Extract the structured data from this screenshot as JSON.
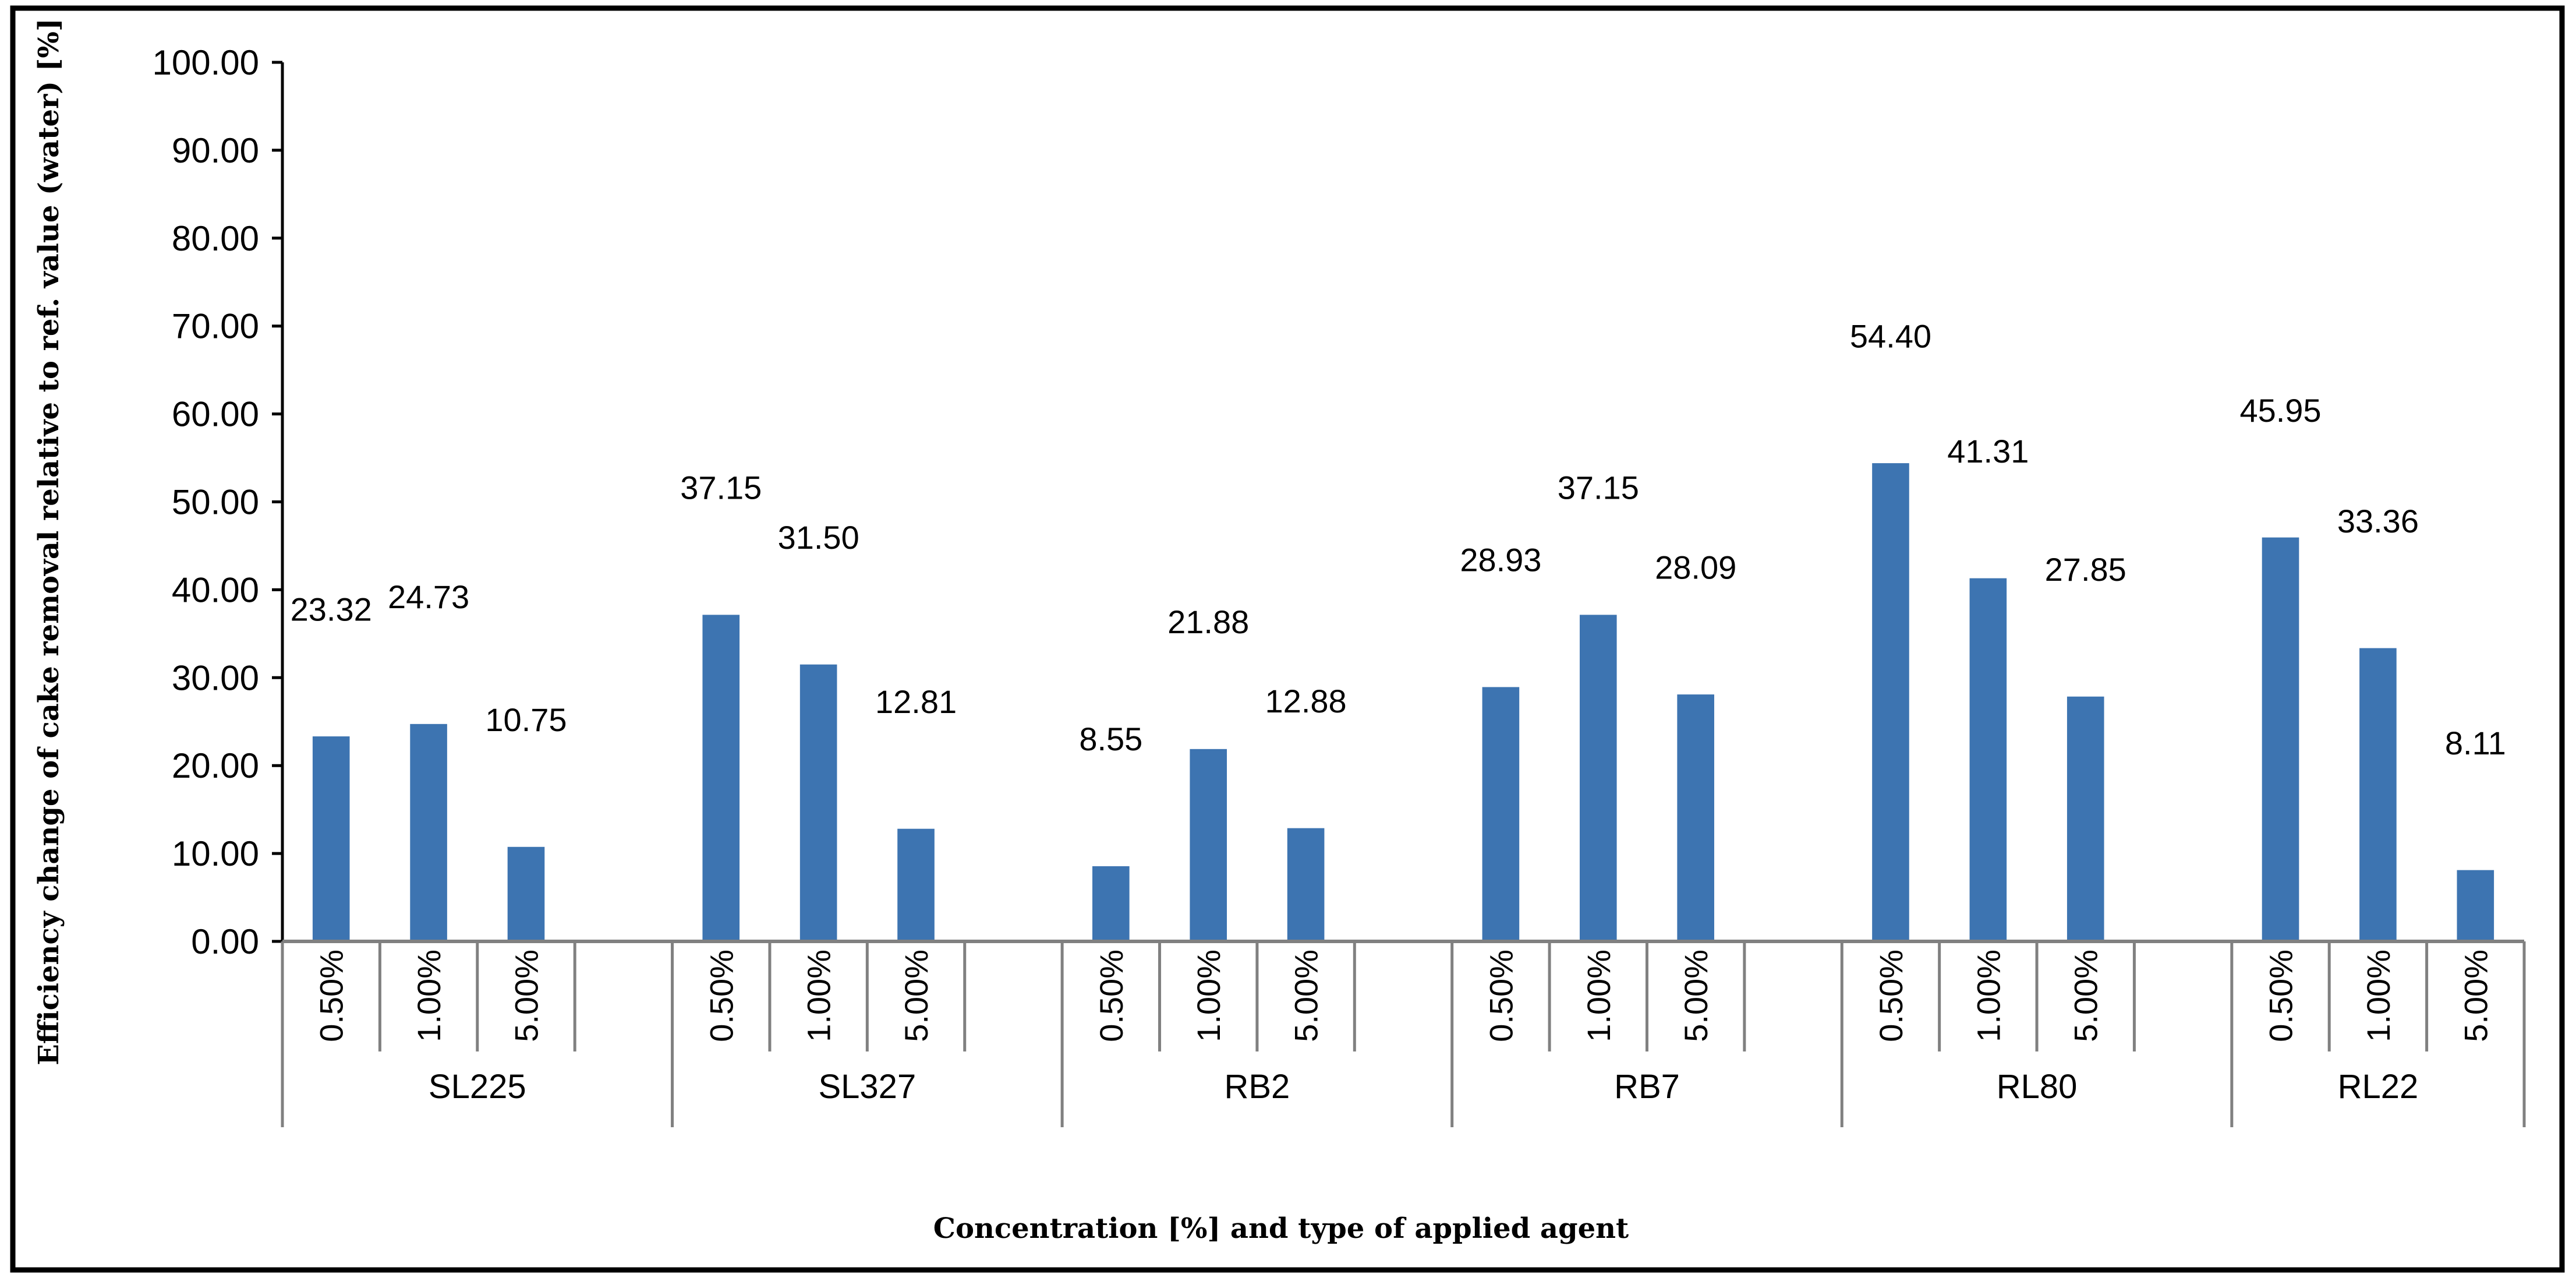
{
  "chart_data": {
    "type": "bar",
    "title": "",
    "xlabel": "Concentration [%] and type of applied agent",
    "ylabel": "Efficiency change of cake removal relative to ref. value (water) [%]",
    "ylim": [
      0,
      100
    ],
    "yticks": [
      "0.00",
      "10.00",
      "20.00",
      "30.00",
      "40.00",
      "50.00",
      "60.00",
      "70.00",
      "80.00",
      "90.00",
      "100.00"
    ],
    "grid": false,
    "legend": "none",
    "bar_color": "#3d74b1",
    "groups": [
      {
        "name": "SL225",
        "categories": [
          "0.50%",
          "1.00%",
          "5.00%"
        ],
        "values": [
          23.32,
          24.73,
          10.75
        ],
        "labels": [
          "23.32",
          "24.73",
          "10.75"
        ]
      },
      {
        "name": "SL327",
        "categories": [
          "0.50%",
          "1.00%",
          "5.00%"
        ],
        "values": [
          37.15,
          31.5,
          12.81
        ],
        "labels": [
          "37.15",
          "31.50",
          "12.81"
        ]
      },
      {
        "name": "RB2",
        "categories": [
          "0.50%",
          "1.00%",
          "5.00%"
        ],
        "values": [
          8.55,
          21.88,
          12.88
        ],
        "labels": [
          "8.55",
          "21.88",
          "12.88"
        ]
      },
      {
        "name": "RB7",
        "categories": [
          "0.50%",
          "1.00%",
          "5.00%"
        ],
        "values": [
          28.93,
          37.15,
          28.09
        ],
        "labels": [
          "28.93",
          "37.15",
          "28.09"
        ]
      },
      {
        "name": "RL80",
        "categories": [
          "0.50%",
          "1.00%",
          "5.00%"
        ],
        "values": [
          54.4,
          41.31,
          27.85
        ],
        "labels": [
          "54.40",
          "41.31",
          "27.85"
        ]
      },
      {
        "name": "RL22",
        "categories": [
          "0.50%",
          "1.00%",
          "5.00%"
        ],
        "values": [
          45.95,
          33.36,
          8.11
        ],
        "labels": [
          "45.95",
          "33.36",
          "8.11"
        ]
      }
    ]
  }
}
